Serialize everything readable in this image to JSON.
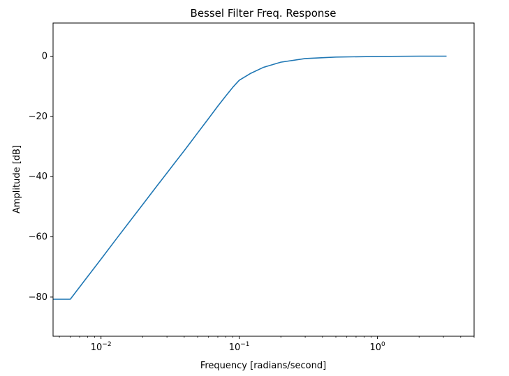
{
  "chart_data": {
    "type": "line",
    "title": "Bessel Filter Freq. Response",
    "xlabel": "Frequency [radians/second]",
    "ylabel": "Amplitude [dB]",
    "xscale": "log",
    "xlim": [
      0.0045,
      5.0
    ],
    "ylim": [
      -93,
      11
    ],
    "grid": false,
    "line_color": "#1f77b4",
    "x_major_ticks": [
      {
        "value": 0.01,
        "base": "10",
        "exp": "−2"
      },
      {
        "value": 0.1,
        "base": "10",
        "exp": "−1"
      },
      {
        "value": 1,
        "base": "10",
        "exp": "0"
      }
    ],
    "y_ticks": [
      {
        "value": 0,
        "label": "0"
      },
      {
        "value": -20,
        "label": "−20"
      },
      {
        "value": -40,
        "label": "−40"
      },
      {
        "value": -60,
        "label": "−60"
      },
      {
        "value": -80,
        "label": "−80"
      }
    ],
    "series": [
      {
        "x": [
          0.0045,
          0.006,
          0.008,
          0.01,
          0.013,
          0.016,
          0.02,
          0.025,
          0.03,
          0.035,
          0.04,
          0.045,
          0.05,
          0.055,
          0.06,
          0.07,
          0.08,
          0.09,
          0.1,
          0.12,
          0.15,
          0.2,
          0.3,
          0.5,
          1.0,
          2.0,
          3.16
        ],
        "y": [
          -80.7,
          -80.7,
          -73.2,
          -67.4,
          -60.5,
          -55.1,
          -49.3,
          -43.5,
          -38.8,
          -34.8,
          -31.4,
          -28.3,
          -25.5,
          -23.0,
          -20.7,
          -16.6,
          -13.2,
          -10.3,
          -8.0,
          -5.8,
          -3.7,
          -2.0,
          -0.8,
          -0.3,
          -0.1,
          0.0,
          0.0
        ]
      }
    ]
  }
}
